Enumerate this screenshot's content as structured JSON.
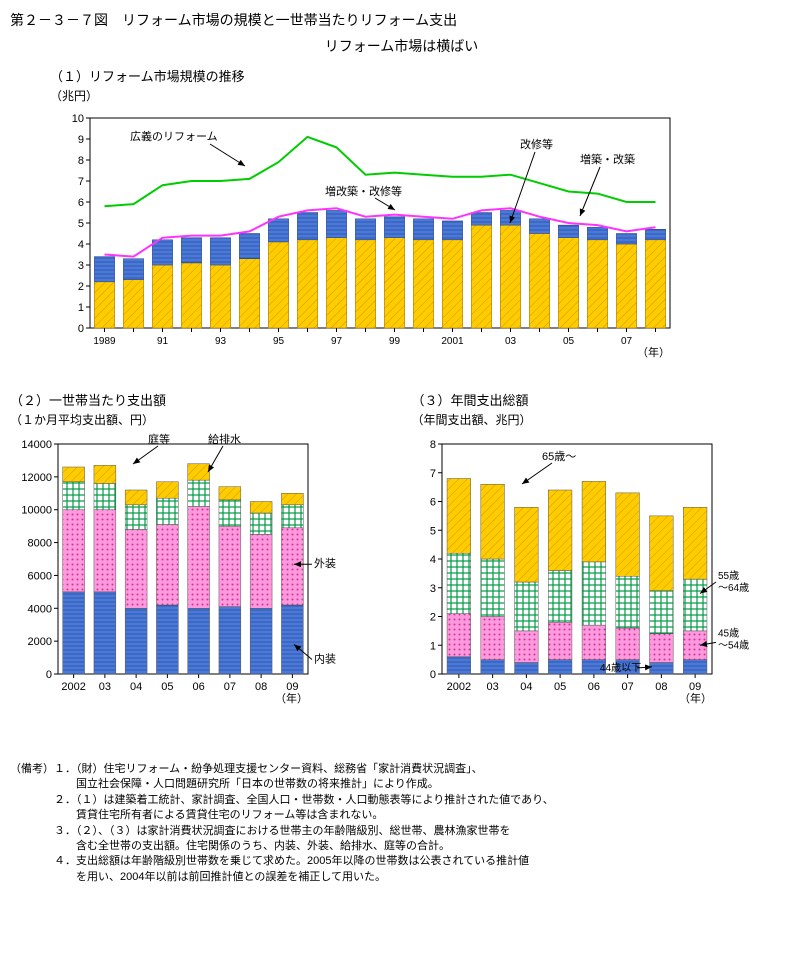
{
  "main_title": "第２－３－７図　リフォーム市場の規模と一世帯当たりリフォーム支出",
  "subtitle": "リフォーム市場は横ばい",
  "chart1": {
    "title": "（１）リフォーム市場規模の推移",
    "unit": "（兆円）",
    "x_unit": "（年）",
    "x_labels": [
      "1989",
      "",
      "91",
      "",
      "93",
      "",
      "95",
      "",
      "97",
      "",
      "99",
      "",
      "2001",
      "",
      "03",
      "",
      "05",
      "",
      "07",
      ""
    ],
    "ylim": [
      0,
      10
    ],
    "ytick_step": 1,
    "line_broad": {
      "color": "#00cc00",
      "width": 2,
      "values": [
        5.8,
        5.9,
        6.8,
        7.0,
        7.0,
        7.1,
        7.9,
        9.1,
        8.6,
        7.3,
        7.4,
        7.3,
        7.2,
        7.2,
        7.3,
        6.9,
        6.5,
        6.4,
        6.0,
        6.0
      ]
    },
    "line_total": {
      "color": "#ff33ff",
      "width": 2,
      "values": [
        3.5,
        3.4,
        4.3,
        4.4,
        4.4,
        4.6,
        5.3,
        5.6,
        5.7,
        5.3,
        5.4,
        5.3,
        5.2,
        5.6,
        5.7,
        5.3,
        5.0,
        4.9,
        4.6,
        4.8
      ]
    },
    "bars": {
      "yellow": {
        "color": "#ffcc00",
        "hatch": "diag",
        "values": [
          2.2,
          2.3,
          3.0,
          3.1,
          3.0,
          3.3,
          4.1,
          4.2,
          4.3,
          4.2,
          4.3,
          4.2,
          4.2,
          4.9,
          4.9,
          4.5,
          4.3,
          4.2,
          4.0,
          4.2
        ]
      },
      "blue": {
        "color": "#3366cc",
        "hatch": "horiz",
        "values": [
          1.2,
          1.0,
          1.2,
          1.2,
          1.3,
          1.2,
          1.1,
          1.3,
          1.3,
          1.0,
          1.0,
          1.0,
          0.9,
          0.6,
          0.7,
          0.7,
          0.6,
          0.6,
          0.5,
          0.5
        ]
      }
    },
    "bar_width": 0.7,
    "ann": {
      "broad": "広義のリフォーム",
      "repair": "改修等",
      "ext": "増築・改築",
      "total": "増改築・改修等"
    }
  },
  "chart2": {
    "title": "（２）一世帯当たり支出額",
    "unit": "（１か月平均支出額、円）",
    "x_unit": "（年）",
    "x_labels": [
      "2002",
      "03",
      "04",
      "05",
      "06",
      "07",
      "08",
      "09"
    ],
    "ylim": [
      0,
      14000
    ],
    "ytick_step": 2000,
    "series": [
      {
        "name": "内装",
        "color": "#3366cc",
        "hatch": "horiz",
        "values": [
          5000,
          5000,
          4000,
          4200,
          4000,
          4100,
          4000,
          4200
        ]
      },
      {
        "name": "外装",
        "color": "#ff66cc",
        "hatch": "dots",
        "values": [
          5000,
          5000,
          4800,
          4900,
          6200,
          4900,
          4500,
          4700
        ]
      },
      {
        "name": "給排水",
        "color": "#00aa44",
        "hatch": "cross",
        "values": [
          1700,
          1600,
          1500,
          1600,
          1600,
          1600,
          1300,
          1400
        ]
      },
      {
        "name": "庭等",
        "color": "#ffcc00",
        "hatch": "diag",
        "values": [
          900,
          1100,
          900,
          1000,
          1000,
          800,
          700,
          700
        ]
      }
    ],
    "bar_width": 0.7,
    "ann": {
      "garden": "庭等",
      "water": "給排水",
      "ext": "外装",
      "int": "内装"
    }
  },
  "chart3": {
    "title": "（３）年間支出総額",
    "unit": "（年間支出額、兆円）",
    "x_unit": "（年）",
    "x_labels": [
      "2002",
      "03",
      "04",
      "05",
      "06",
      "07",
      "08",
      "09"
    ],
    "ylim": [
      0,
      8
    ],
    "ytick_step": 1,
    "series": [
      {
        "name": "44歳以下",
        "color": "#3366cc",
        "hatch": "horiz",
        "values": [
          0.6,
          0.5,
          0.4,
          0.5,
          0.5,
          0.5,
          0.4,
          0.5
        ]
      },
      {
        "name": "45歳～54歳",
        "color": "#ff66cc",
        "hatch": "dots",
        "values": [
          1.5,
          1.5,
          1.1,
          1.3,
          1.2,
          1.1,
          1.0,
          1.0
        ]
      },
      {
        "name": "55歳～64歳",
        "color": "#00aa44",
        "hatch": "cross",
        "values": [
          2.1,
          2.0,
          1.7,
          1.8,
          2.2,
          1.8,
          1.5,
          1.8
        ]
      },
      {
        "name": "65歳～",
        "color": "#ffcc00",
        "hatch": "diag",
        "values": [
          2.6,
          2.6,
          2.6,
          2.8,
          2.8,
          2.9,
          2.6,
          2.5
        ]
      }
    ],
    "bar_width": 0.7,
    "ann": {
      "a65": "65歳～",
      "a55": "55歳\n～64歳",
      "a45": "45歳\n～54歳",
      "a44": "44歳以下"
    }
  },
  "notes": [
    "（備考）１．（財）住宅リフォーム・紛争処理支援センター資料、総務省「家計消費状況調査」、",
    "　　　　　　国立社会保障・人口問題研究所「日本の世帯数の将来推計」により作成。",
    "　　　　２．（１）は建築着工統計、家計調査、全国人口・世帯数・人口動態表等により推計された値であり、",
    "　　　　　　賃貸住宅所有者による賃貸住宅のリフォーム等は含まれない。",
    "　　　　３．（２）、（３）は家計消費状況調査における世帯主の年齢階級別、総世帯、農林漁家世帯を",
    "　　　　　　含む全世帯の支出額。住宅関係のうち、内装、外装、給排水、庭等の合計。",
    "　　　　４．支出総額は年齢階級別世帯数を乗じて求めた。2005年以降の世帯数は公表されている推計値",
    "　　　　　　を用い、2004年以前は前回推計値との誤差を補正して用いた。"
  ]
}
